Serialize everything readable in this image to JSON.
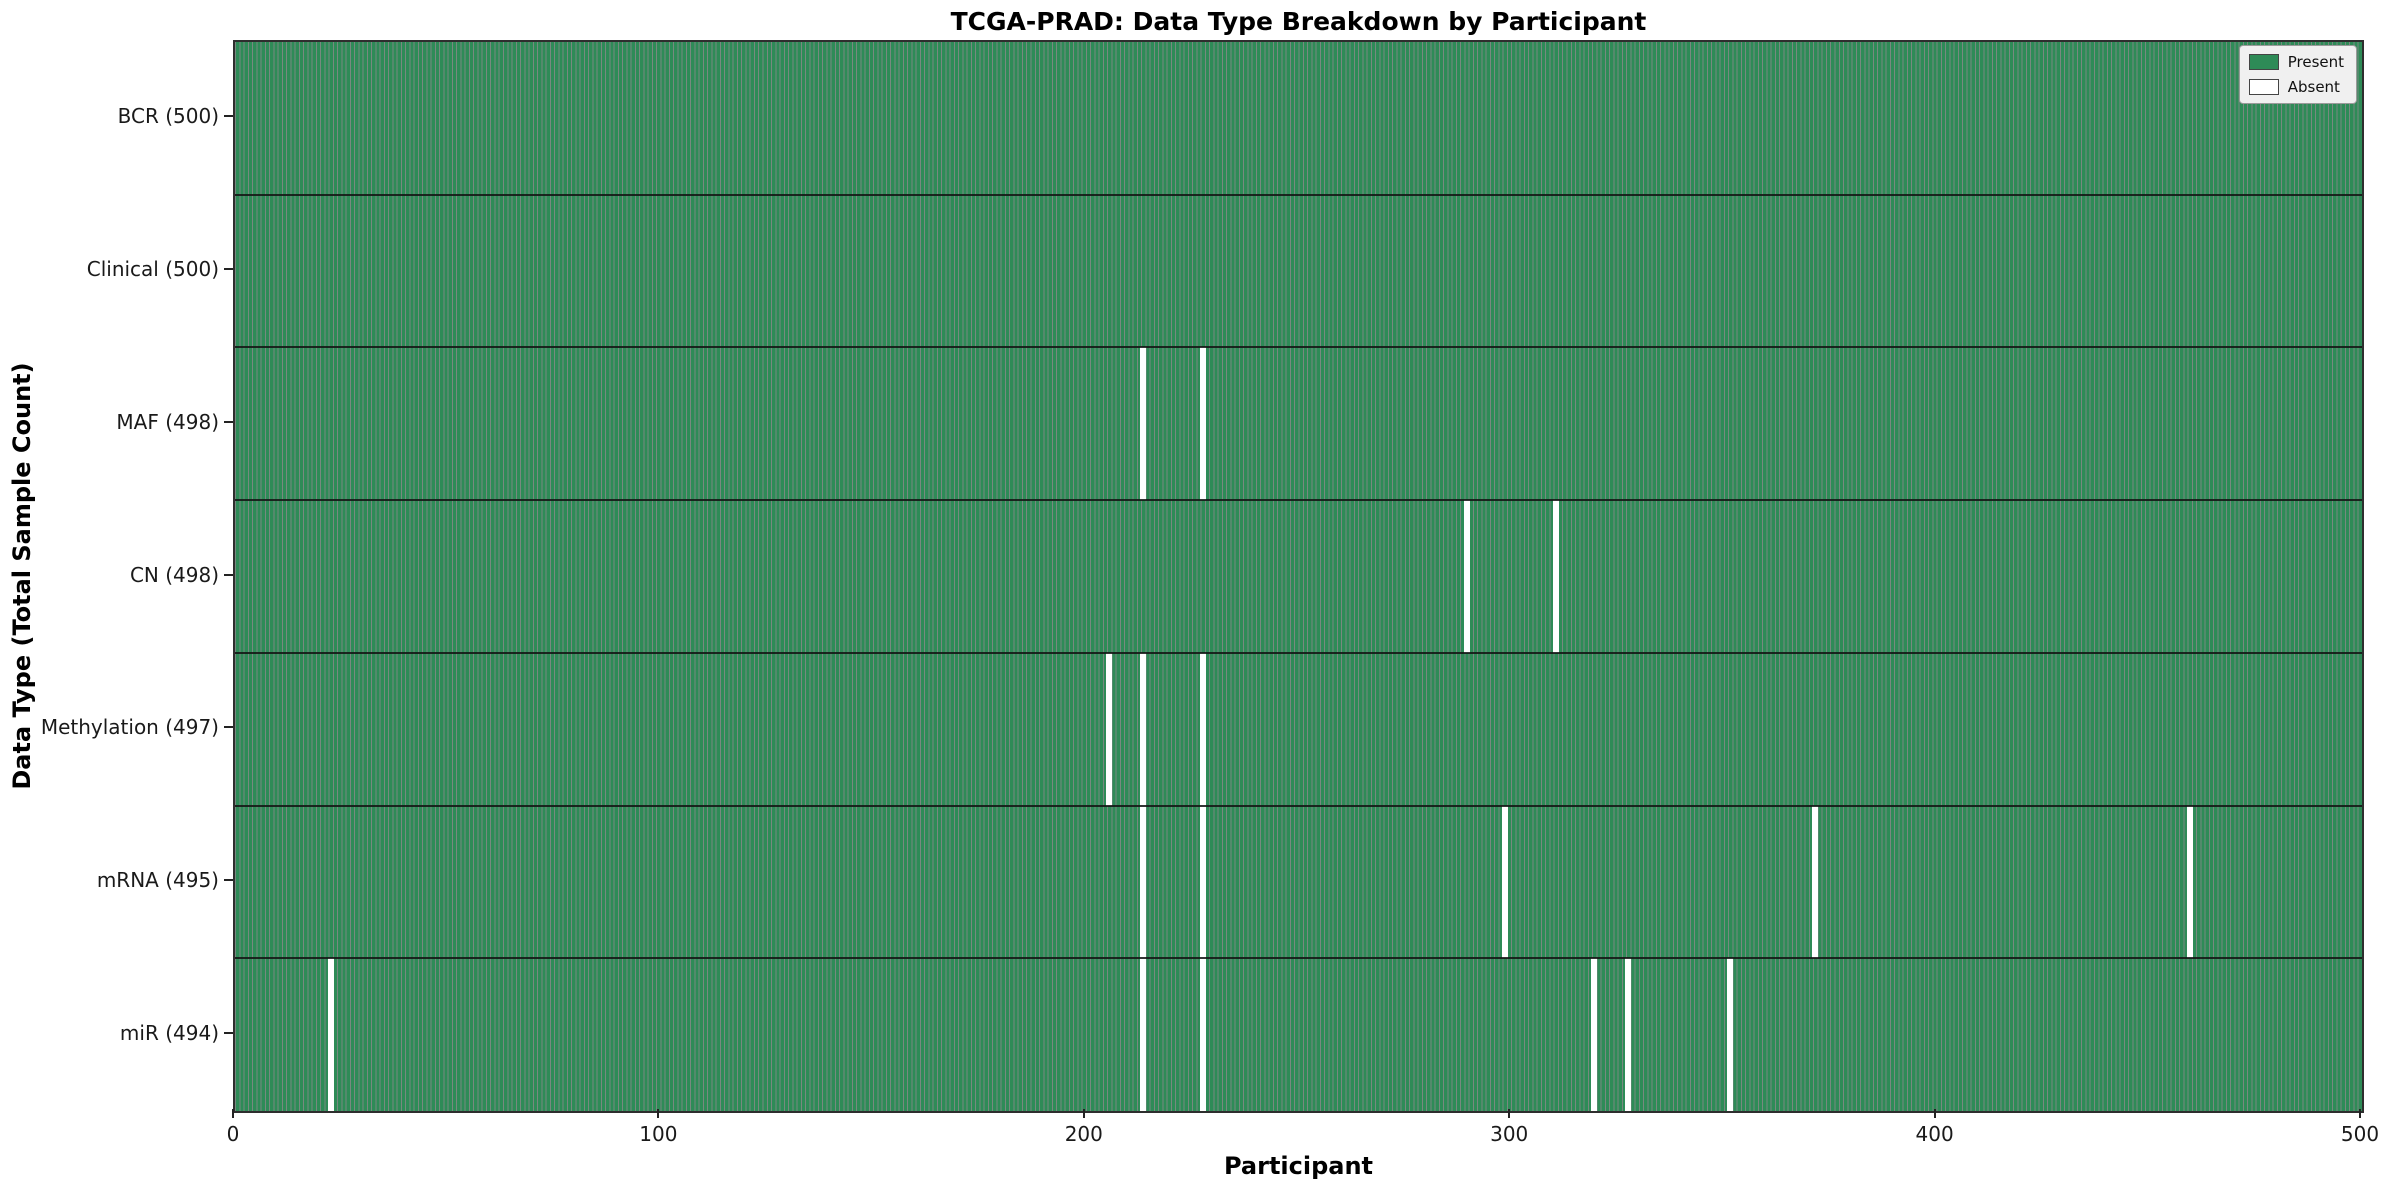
{
  "chart_data": {
    "type": "heatmap",
    "title": "TCGA-PRAD: Data Type Breakdown by Participant",
    "xlabel": "Participant",
    "ylabel": "Data Type (Total Sample Count)",
    "xlim": [
      0,
      500
    ],
    "xticks": [
      0,
      100,
      200,
      300,
      400,
      500
    ],
    "grid": false,
    "legend": {
      "position": "upper right",
      "entries": [
        "Present",
        "Absent"
      ]
    },
    "colors": {
      "present": "#2e8b57",
      "absent": "#ffffff",
      "edge": "rgba(8, 40, 24, 0.55)"
    },
    "rows": [
      {
        "label": "BCR",
        "count": 500,
        "display": "BCR (500)",
        "absent_participants": []
      },
      {
        "label": "Clinical",
        "count": 500,
        "display": "Clinical (500)",
        "absent_participants": []
      },
      {
        "label": "MAF",
        "count": 498,
        "display": "MAF (498)",
        "absent_participants": [
          213,
          227
        ]
      },
      {
        "label": "CN",
        "count": 498,
        "display": "CN (498)",
        "absent_participants": [
          289,
          310
        ]
      },
      {
        "label": "Methylation",
        "count": 497,
        "display": "Methylation (497)",
        "absent_participants": [
          205,
          213,
          227
        ]
      },
      {
        "label": "mRNA",
        "count": 495,
        "display": "mRNA (495)",
        "absent_participants": [
          213,
          227,
          298,
          371,
          459
        ]
      },
      {
        "label": "miR",
        "count": 494,
        "display": "miR (494)",
        "absent_participants": [
          22,
          213,
          227,
          319,
          327,
          351
        ]
      }
    ]
  }
}
